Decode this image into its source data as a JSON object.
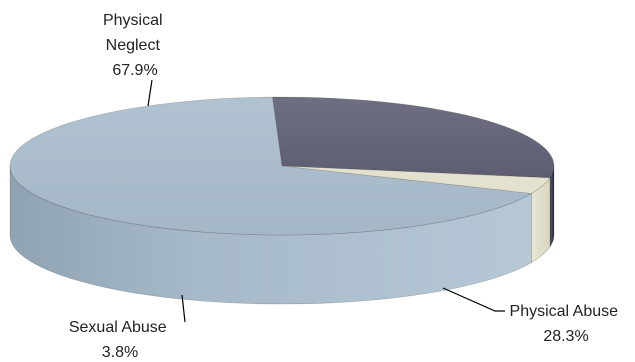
{
  "chart_data": {
    "type": "pie",
    "three_d": true,
    "title": "",
    "slices": [
      {
        "label": "Physical Neglect",
        "value": 67.9,
        "value_label": "67.9%",
        "color": "#a9bccb"
      },
      {
        "label": "Physical Abuse",
        "value": 28.3,
        "value_label": "28.3%",
        "color": "#636477"
      },
      {
        "label": "Sexual Abuse",
        "value": 3.8,
        "value_label": "3.8%",
        "color": "#e4e2cf"
      }
    ],
    "labels": {
      "physical_neglect": [
        "Physical",
        "Neglect",
        "67.9%"
      ],
      "physical_abuse": [
        "Physical Abuse",
        "28.3%"
      ],
      "sexual_abuse": [
        "Sexual Abuse",
        "3.8%"
      ]
    },
    "legend": "none",
    "label_placement": "outside-with-leader-lines"
  }
}
